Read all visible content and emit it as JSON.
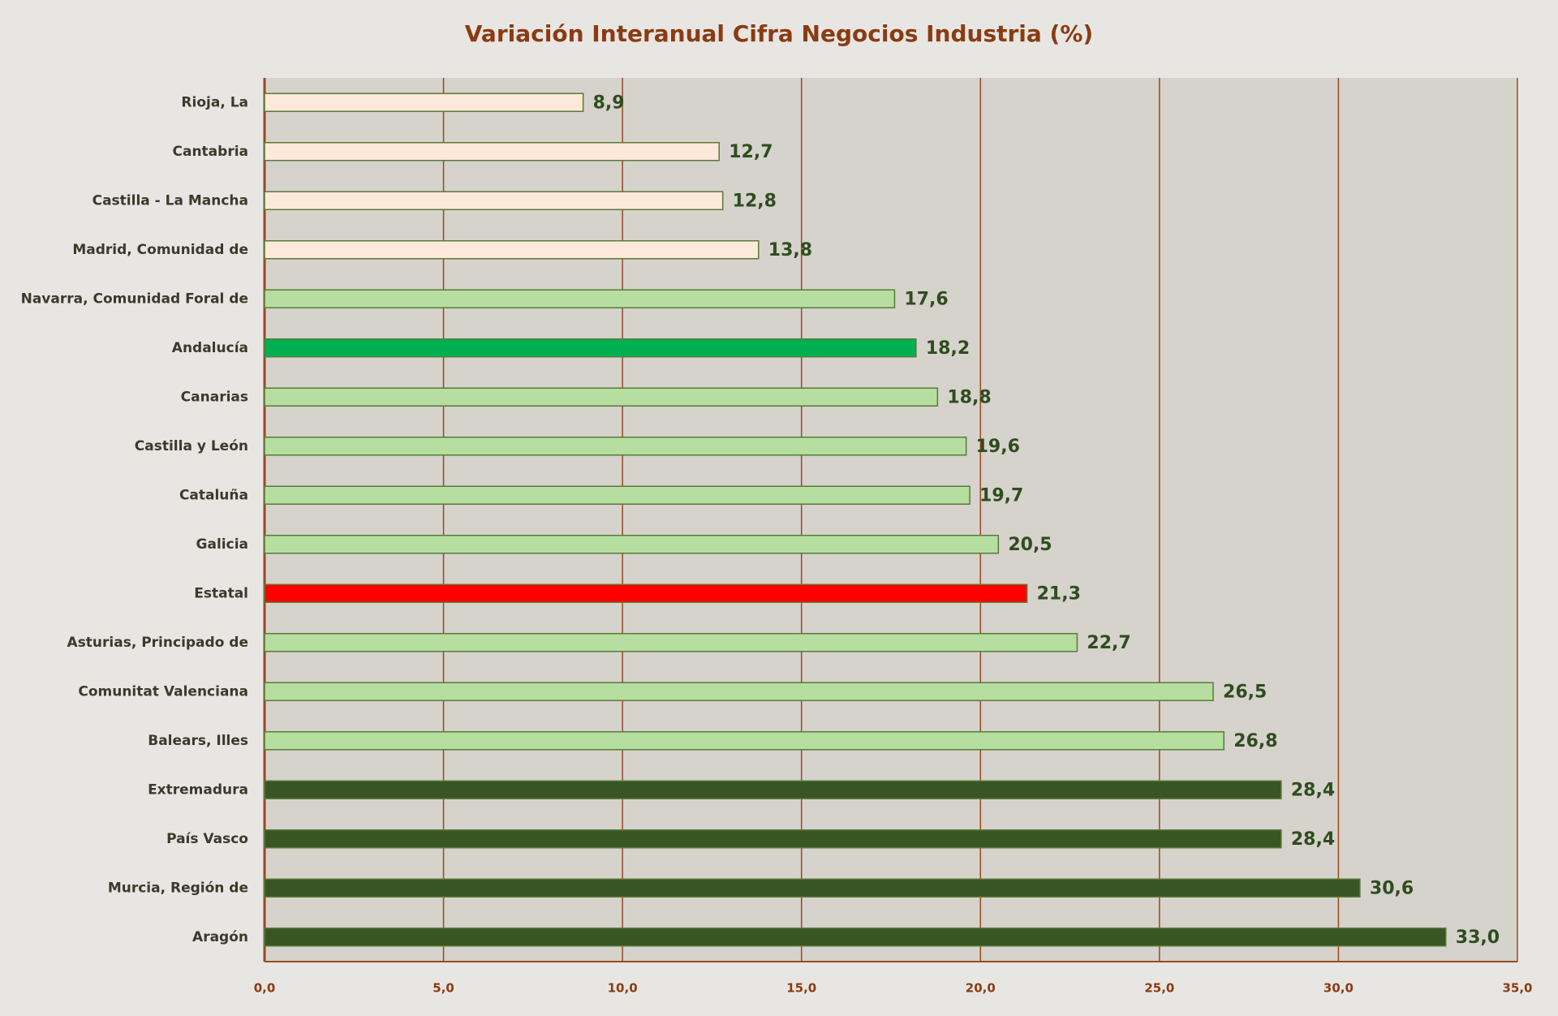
{
  "chart_data": {
    "type": "barh",
    "title": "Variación Interanual Cifra Negocios Industria (%)",
    "categories": [
      "Rioja, La",
      "Cantabria",
      "Castilla - La Mancha",
      "Madrid, Comunidad de",
      "Navarra, Comunidad Foral de",
      "Andalucía",
      "Canarias",
      "Castilla y León",
      "Cataluña",
      "Galicia",
      "Estatal",
      "Asturias, Principado de",
      "Comunitat Valenciana",
      "Balears, Illes",
      "Extremadura",
      "País Vasco",
      "Murcia, Región de",
      "Aragón"
    ],
    "values": [
      8.9,
      12.7,
      12.8,
      13.8,
      17.6,
      18.2,
      18.8,
      19.6,
      19.7,
      20.5,
      21.3,
      22.7,
      26.5,
      26.8,
      28.4,
      28.4,
      30.6,
      33.0
    ],
    "value_labels": [
      "8,9",
      "12,7",
      "12,8",
      "13,8",
      "17,6",
      "18,2",
      "18,8",
      "19,6",
      "19,7",
      "20,5",
      "21,3",
      "22,7",
      "26,5",
      "26,8",
      "28,4",
      "28,4",
      "30,6",
      "33,0"
    ],
    "colors": [
      "#fde9d9",
      "#fde9d9",
      "#fde9d9",
      "#fde9d9",
      "#b6dea0",
      "#00b050",
      "#b6dea0",
      "#b6dea0",
      "#b6dea0",
      "#b6dea0",
      "#ff0000",
      "#b6dea0",
      "#b6dea0",
      "#b6dea0",
      "#375623",
      "#375623",
      "#375623",
      "#375623"
    ],
    "xlim": [
      0,
      35
    ],
    "xticks": [
      {
        "value": 0,
        "label": "0,0"
      },
      {
        "value": 5,
        "label": "5,0"
      },
      {
        "value": 10,
        "label": "10,0"
      },
      {
        "value": 15,
        "label": "15,0"
      },
      {
        "value": 20,
        "label": "20,0"
      },
      {
        "value": 25,
        "label": "25,0"
      },
      {
        "value": 30,
        "label": "30,0"
      },
      {
        "value": 35,
        "label": "35,0"
      }
    ],
    "grid": true
  }
}
